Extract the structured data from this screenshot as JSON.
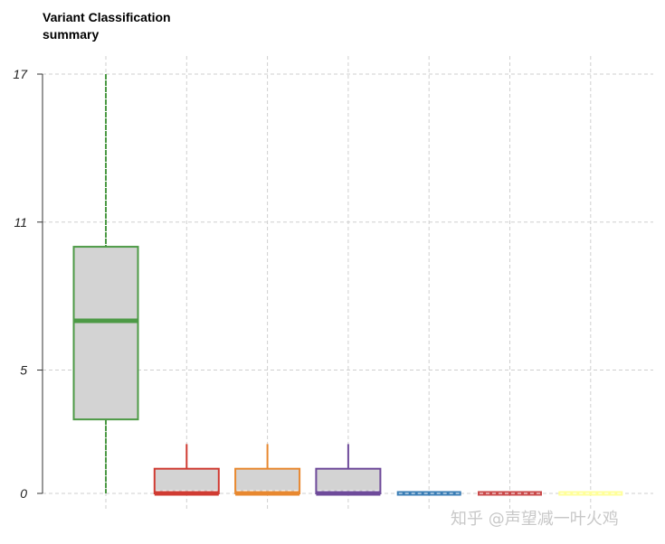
{
  "chart_data": {
    "type": "boxplot",
    "title": "Variant Classification\nsummary",
    "ylim": [
      0,
      17
    ],
    "yticks": [
      0,
      5,
      11,
      17
    ],
    "grid": true,
    "legend": "none",
    "boxes": [
      {
        "color": "#4d9a46",
        "min": 0,
        "q1": 3,
        "median": 7,
        "q3": 10,
        "max": 17
      },
      {
        "color": "#d03b32",
        "min": 0,
        "q1": 0,
        "median": 0,
        "q3": 1,
        "max": 2
      },
      {
        "color": "#e8882f",
        "min": 0,
        "q1": 0,
        "median": 0,
        "q3": 1,
        "max": 2
      },
      {
        "color": "#6e4a9a",
        "min": 0,
        "q1": 0,
        "median": 0,
        "q3": 1,
        "max": 2
      },
      {
        "color": "#3a7db5",
        "min": 0,
        "q1": 0,
        "median": 0,
        "q3": 0,
        "max": 0
      },
      {
        "color": "#c9494a",
        "min": 0,
        "q1": 0,
        "median": 0,
        "q3": 0,
        "max": 0
      },
      {
        "color": "#ffff99",
        "min": 0,
        "q1": 0,
        "median": 0,
        "q3": 0,
        "max": 0
      }
    ]
  },
  "watermark": "知乎 @声望减一叶火鸡"
}
